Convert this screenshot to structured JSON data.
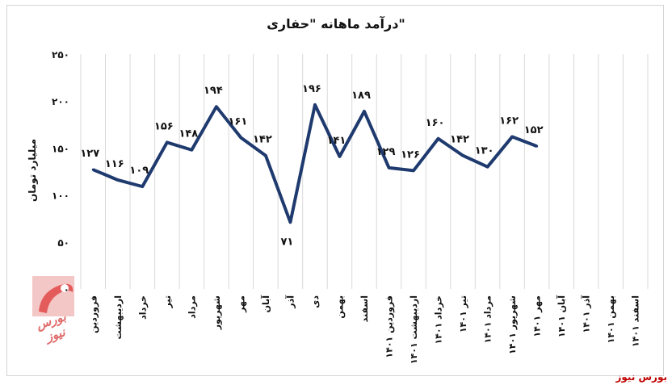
{
  "chart_data": {
    "type": "line",
    "title": "درآمد ماهانه \"حفاری\"",
    "ylabel": "میلیارد تومان",
    "ylim": [
      0,
      250
    ],
    "yticks": [
      "۰",
      "۵۰",
      "۱۰۰",
      "۱۵۰",
      "۲۰۰",
      "۲۵۰"
    ],
    "ytick_values": [
      0,
      50,
      100,
      150,
      200,
      250
    ],
    "grid": "vertical",
    "color": "#1f3a6e",
    "categories": [
      "فروردین",
      "اردیبهشت",
      "خرداد",
      "تیر",
      "مرداد",
      "شهریور",
      "مهر",
      "آبان",
      "آذر",
      "دی",
      "بهمن",
      "اسفند",
      "فروردین ۱۴۰۱",
      "اردیبهشت ۱۴۰۱",
      "خرداد ۱۴۰۱",
      "تیر ۱۴۰۱",
      "مرداد ۱۴۰۱",
      "شهریور ۱۴۰۱",
      "مهر ۱۴۰۱",
      "آبان ۱۴۰۱",
      "آذر ۱۴۰۱",
      "بهمن ۱۴۰۱",
      "اسفند ۱۴۰۱"
    ],
    "values": [
      127,
      116,
      109,
      156,
      148,
      194,
      161,
      142,
      71,
      196,
      141,
      189,
      129,
      126,
      160,
      142,
      130,
      162,
      152,
      null,
      null,
      null,
      null
    ],
    "labels": [
      "۱۲۷",
      "۱۱۶",
      "۱۰۹",
      "۱۵۶",
      "۱۴۸",
      "۱۹۴",
      "۱۶۱",
      "۱۴۲",
      "۷۱",
      "۱۹۶",
      "۱۴۱",
      "۱۸۹",
      "۱۲۹",
      "۱۲۶",
      "۱۶۰",
      "۱۴۲",
      "۱۳۰",
      "۱۶۲",
      "۱۵۲"
    ]
  },
  "logo": {
    "text": "بورس نیوز"
  },
  "brand": {
    "text": "بورس نیوز"
  }
}
